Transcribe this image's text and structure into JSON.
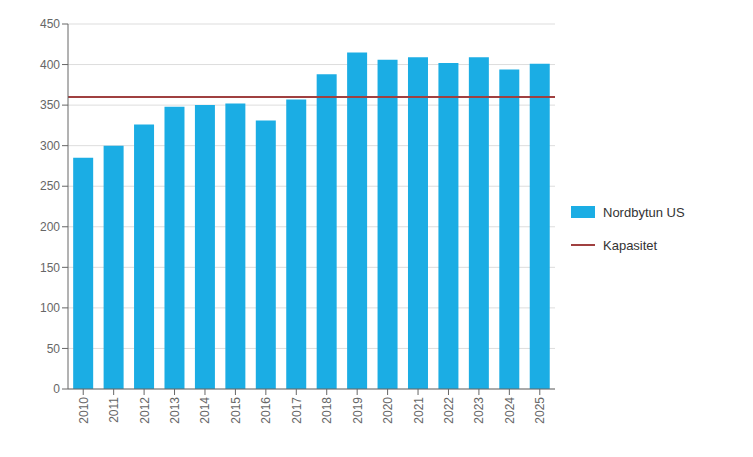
{
  "chart_data": {
    "type": "bar",
    "categories": [
      "2010",
      "2011",
      "2012",
      "2013",
      "2014",
      "2015",
      "2016",
      "2017",
      "2018",
      "2019",
      "2020",
      "2021",
      "2022",
      "2023",
      "2024",
      "2025"
    ],
    "series": [
      {
        "name": "Nordbytun US",
        "color": "#1BADE4",
        "values": [
          285,
          300,
          326,
          348,
          350,
          352,
          331,
          357,
          388,
          415,
          406,
          409,
          402,
          409,
          394,
          401
        ]
      }
    ],
    "reference_line": {
      "name": "Kapasitet",
      "color": "#A04040",
      "value": 360
    },
    "ylim": [
      0,
      450
    ],
    "yticks": [
      0,
      50,
      100,
      150,
      200,
      250,
      300,
      350,
      400,
      450
    ],
    "grid": true,
    "legend": "right"
  }
}
